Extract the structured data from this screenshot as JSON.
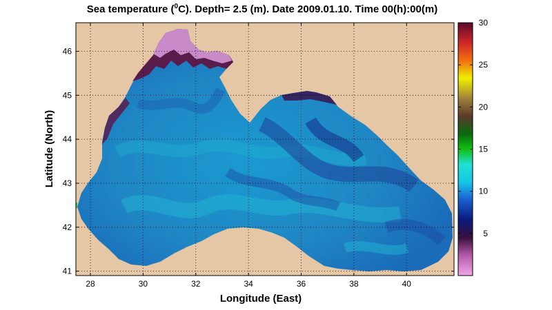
{
  "title": {
    "prefix": "Sea temperature (",
    "sup": "0",
    "suffix": "C). Depth=  2.5 (m). Date 2009.01.10. Time 00(h):00(m)"
  },
  "axes": {
    "xlabel": "Longitude (East)",
    "ylabel": "Latitude (North)",
    "x_ticks": [
      "28",
      "30",
      "32",
      "34",
      "36",
      "38",
      "40"
    ],
    "y_ticks": [
      "41",
      "42",
      "43",
      "44",
      "45",
      "46"
    ],
    "xlim": [
      27.45,
      41.8
    ],
    "ylim": [
      40.9,
      46.65
    ],
    "grid": "dotted"
  },
  "colorbar": {
    "ticks": [
      "5",
      "10",
      "15",
      "20",
      "25",
      "30"
    ],
    "range": [
      0,
      30
    ]
  },
  "colors": {
    "land": "#e6c7a5",
    "sea": "#2a8ac4",
    "sea_light": "#1fb0cf",
    "sea_dark": "#1d3f96",
    "coast_cold": "#5a1b4d",
    "coast_cold_light": "#d8a0d8"
  }
}
